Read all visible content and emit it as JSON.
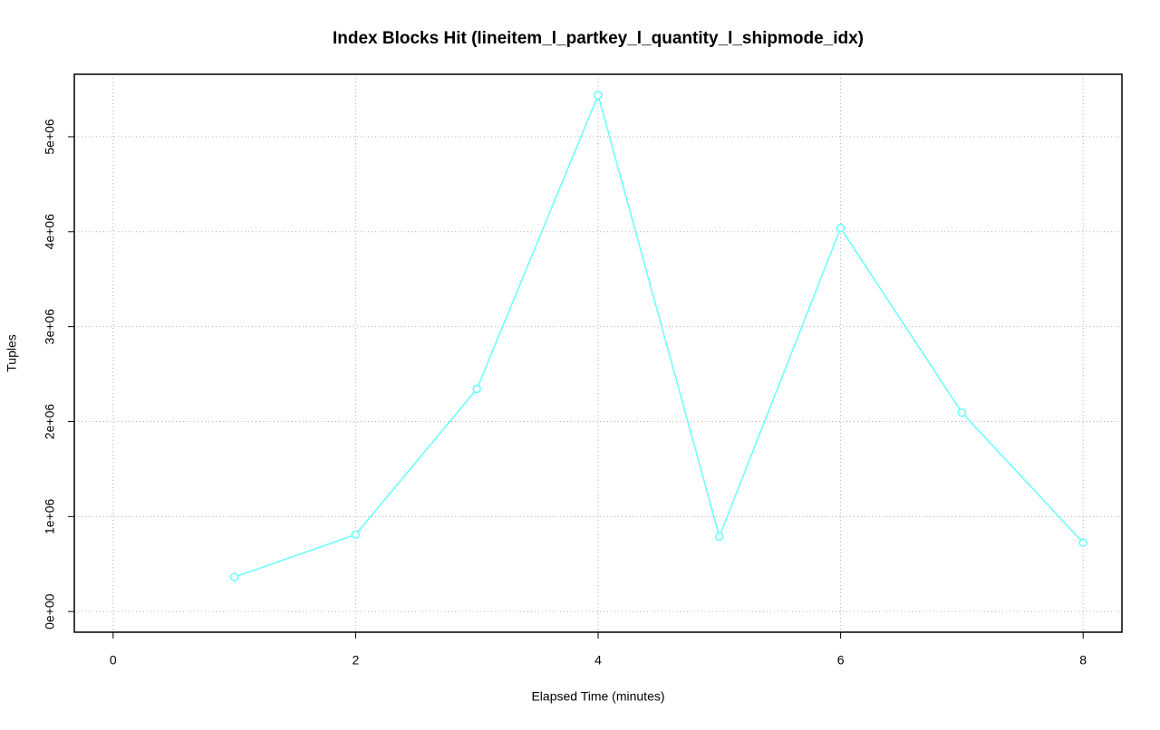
{
  "chart_data": {
    "type": "line",
    "title": "Index Blocks Hit (lineitem_l_partkey_l_quantity_l_shipmode_idx)",
    "x_label": "Elapsed Time (minutes)",
    "y_label": "Tuples",
    "series": [
      {
        "color": "#66ffff",
        "x": [
          1,
          2,
          3,
          4,
          5,
          6,
          7,
          8
        ],
        "values": [
          362000,
          810000,
          2343000,
          5438000,
          790000,
          4038000,
          2095000,
          724000
        ]
      }
    ],
    "xlim": [
      -0.32,
      8.32
    ],
    "xticks": [
      0,
      2,
      4,
      6,
      8
    ],
    "ylim": [
      -217600,
      5657600
    ],
    "yticks": [
      {
        "value": 0,
        "label": "0e+00"
      },
      {
        "value": 1000000,
        "label": "1e+06"
      },
      {
        "value": 2000000,
        "label": "2e+06"
      },
      {
        "value": 3000000,
        "label": "3e+06"
      },
      {
        "value": 4000000,
        "label": "4e+06"
      },
      {
        "value": 5000000,
        "label": "5e+06"
      }
    ],
    "grid": true
  }
}
